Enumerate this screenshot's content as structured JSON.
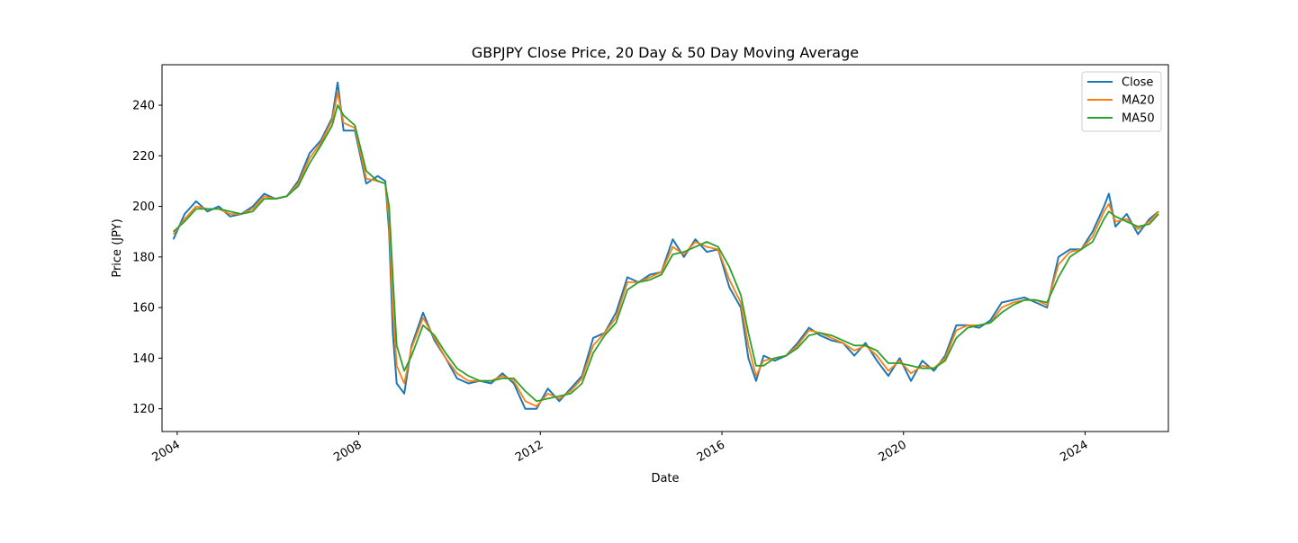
{
  "chart_data": {
    "type": "line",
    "title": "GBPJPY Close Price, 20 Day & 50 Day Moving Average",
    "xlabel": "Date",
    "ylabel": "Price (JPY)",
    "x_type": "date",
    "xlim": [
      "2003-09-01",
      "2025-11-01"
    ],
    "ylim": [
      111,
      256
    ],
    "x_ticks": [
      {
        "date": "2004-01-01",
        "label": "2004"
      },
      {
        "date": "2008-01-01",
        "label": "2008"
      },
      {
        "date": "2012-01-01",
        "label": "2012"
      },
      {
        "date": "2016-01-01",
        "label": "2016"
      },
      {
        "date": "2020-01-01",
        "label": "2020"
      },
      {
        "date": "2024-01-01",
        "label": "2024"
      }
    ],
    "y_ticks": [
      120,
      140,
      160,
      180,
      200,
      220,
      240
    ],
    "grid": false,
    "legend_position": "top-right",
    "x": [
      "2003-12-01",
      "2004-03-01",
      "2004-06-01",
      "2004-09-01",
      "2004-12-01",
      "2005-03-01",
      "2005-06-01",
      "2005-09-01",
      "2005-12-01",
      "2006-03-01",
      "2006-06-01",
      "2006-09-01",
      "2006-12-01",
      "2007-03-01",
      "2007-06-01",
      "2007-07-15",
      "2007-09-01",
      "2007-12-01",
      "2008-03-01",
      "2008-06-01",
      "2008-08-01",
      "2008-09-01",
      "2008-10-01",
      "2008-11-01",
      "2009-01-01",
      "2009-03-01",
      "2009-06-01",
      "2009-09-01",
      "2009-12-01",
      "2010-03-01",
      "2010-06-01",
      "2010-09-01",
      "2010-12-01",
      "2011-03-01",
      "2011-06-01",
      "2011-09-01",
      "2011-12-01",
      "2012-03-01",
      "2012-06-01",
      "2012-09-01",
      "2012-12-01",
      "2013-03-01",
      "2013-06-01",
      "2013-09-01",
      "2013-12-01",
      "2014-03-01",
      "2014-06-01",
      "2014-09-01",
      "2014-12-01",
      "2015-03-01",
      "2015-06-01",
      "2015-09-01",
      "2015-12-01",
      "2016-03-01",
      "2016-06-01",
      "2016-08-01",
      "2016-10-01",
      "2016-12-01",
      "2017-03-01",
      "2017-06-01",
      "2017-09-01",
      "2017-12-01",
      "2018-03-01",
      "2018-06-01",
      "2018-09-01",
      "2018-12-01",
      "2019-03-01",
      "2019-06-01",
      "2019-09-01",
      "2019-12-01",
      "2020-03-01",
      "2020-06-01",
      "2020-09-01",
      "2020-12-01",
      "2021-03-01",
      "2021-06-01",
      "2021-09-01",
      "2021-12-01",
      "2022-03-01",
      "2022-06-01",
      "2022-09-01",
      "2022-12-01",
      "2023-03-01",
      "2023-06-01",
      "2023-09-01",
      "2023-12-01",
      "2024-03-01",
      "2024-06-01",
      "2024-07-10",
      "2024-09-01",
      "2024-12-01",
      "2025-03-01",
      "2025-06-01",
      "2025-08-15"
    ],
    "series": [
      {
        "name": "Close",
        "color": "#1f77b4",
        "values": [
          187,
          197,
          202,
          198,
          200,
          196,
          197,
          200,
          205,
          203,
          204,
          210,
          221,
          226,
          235,
          249,
          230,
          230,
          209,
          212,
          210,
          190,
          150,
          130,
          126,
          145,
          158,
          147,
          140,
          132,
          130,
          131,
          130,
          134,
          130,
          120,
          120,
          128,
          123,
          128,
          133,
          148,
          150,
          158,
          172,
          170,
          173,
          174,
          187,
          180,
          187,
          182,
          183,
          168,
          160,
          140,
          131,
          141,
          139,
          141,
          146,
          152,
          149,
          147,
          146,
          141,
          146,
          139,
          133,
          140,
          131,
          139,
          135,
          141,
          153,
          153,
          152,
          155,
          162,
          163,
          164,
          162,
          160,
          180,
          183,
          183,
          190,
          200,
          205,
          192,
          197,
          189,
          195,
          198
        ]
      },
      {
        "name": "MA20",
        "color": "#ff7f0e",
        "values": [
          189,
          195,
          200,
          199,
          199,
          197,
          197,
          199,
          204,
          203,
          204,
          209,
          219,
          225,
          234,
          245,
          233,
          231,
          211,
          210,
          209,
          195,
          160,
          137,
          130,
          144,
          156,
          148,
          140,
          134,
          131,
          131,
          131,
          133,
          131,
          123,
          121,
          126,
          124,
          127,
          132,
          145,
          150,
          156,
          170,
          170,
          172,
          174,
          184,
          181,
          186,
          184,
          183,
          171,
          162,
          145,
          133,
          139,
          140,
          141,
          145,
          151,
          150,
          148,
          146,
          143,
          145,
          141,
          135,
          139,
          134,
          137,
          136,
          140,
          151,
          153,
          153,
          154,
          160,
          162,
          163,
          163,
          161,
          177,
          182,
          183,
          188,
          198,
          201,
          194,
          195,
          191,
          194,
          198
        ]
      },
      {
        "name": "MA50",
        "color": "#2ca02c",
        "values": [
          190,
          194,
          199,
          199,
          199,
          198,
          197,
          198,
          203,
          203,
          204,
          208,
          217,
          224,
          232,
          240,
          236,
          232,
          214,
          210,
          209,
          200,
          172,
          145,
          135,
          141,
          153,
          149,
          142,
          136,
          133,
          131,
          131,
          132,
          132,
          127,
          123,
          124,
          125,
          126,
          130,
          142,
          149,
          154,
          167,
          170,
          171,
          173,
          181,
          182,
          184,
          186,
          184,
          176,
          165,
          150,
          137,
          137,
          140,
          141,
          144,
          149,
          150,
          149,
          147,
          145,
          145,
          143,
          138,
          138,
          137,
          136,
          136,
          139,
          148,
          152,
          153,
          154,
          158,
          161,
          163,
          163,
          162,
          172,
          180,
          183,
          186,
          195,
          198,
          196,
          194,
          192,
          193,
          197
        ]
      }
    ]
  }
}
